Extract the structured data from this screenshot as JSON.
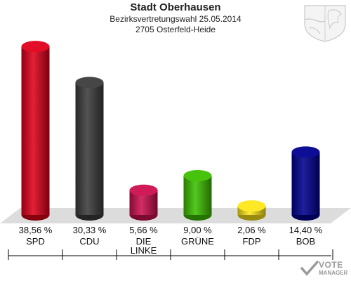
{
  "header": {
    "title": "Stadt Oberhausen",
    "subtitle": "Bezirksvertretungswahl 25.05.2014",
    "district": "2705 Osterfeld-Heide"
  },
  "watermark": {
    "brand_line1": "VOTE",
    "brand_line2": "MANAGER"
  },
  "chart_data": {
    "type": "bar",
    "categories": [
      "SPD",
      "CDU",
      "DIE LINKE",
      "GRÜNE",
      "FDP",
      "BOB"
    ],
    "value_labels": [
      "38,56 %",
      "30,33 %",
      "5,66 %",
      "9,00 %",
      "2,06 %",
      "14,40 %"
    ],
    "values": [
      38.56,
      30.33,
      5.66,
      9.0,
      2.06,
      14.4
    ],
    "colors": [
      "#e0001b",
      "#3c3c3c",
      "#cc1050",
      "#3dc000",
      "#ffe81c",
      "#000090"
    ],
    "ylim": [
      0,
      40
    ],
    "grid": false,
    "legend": "none"
  }
}
